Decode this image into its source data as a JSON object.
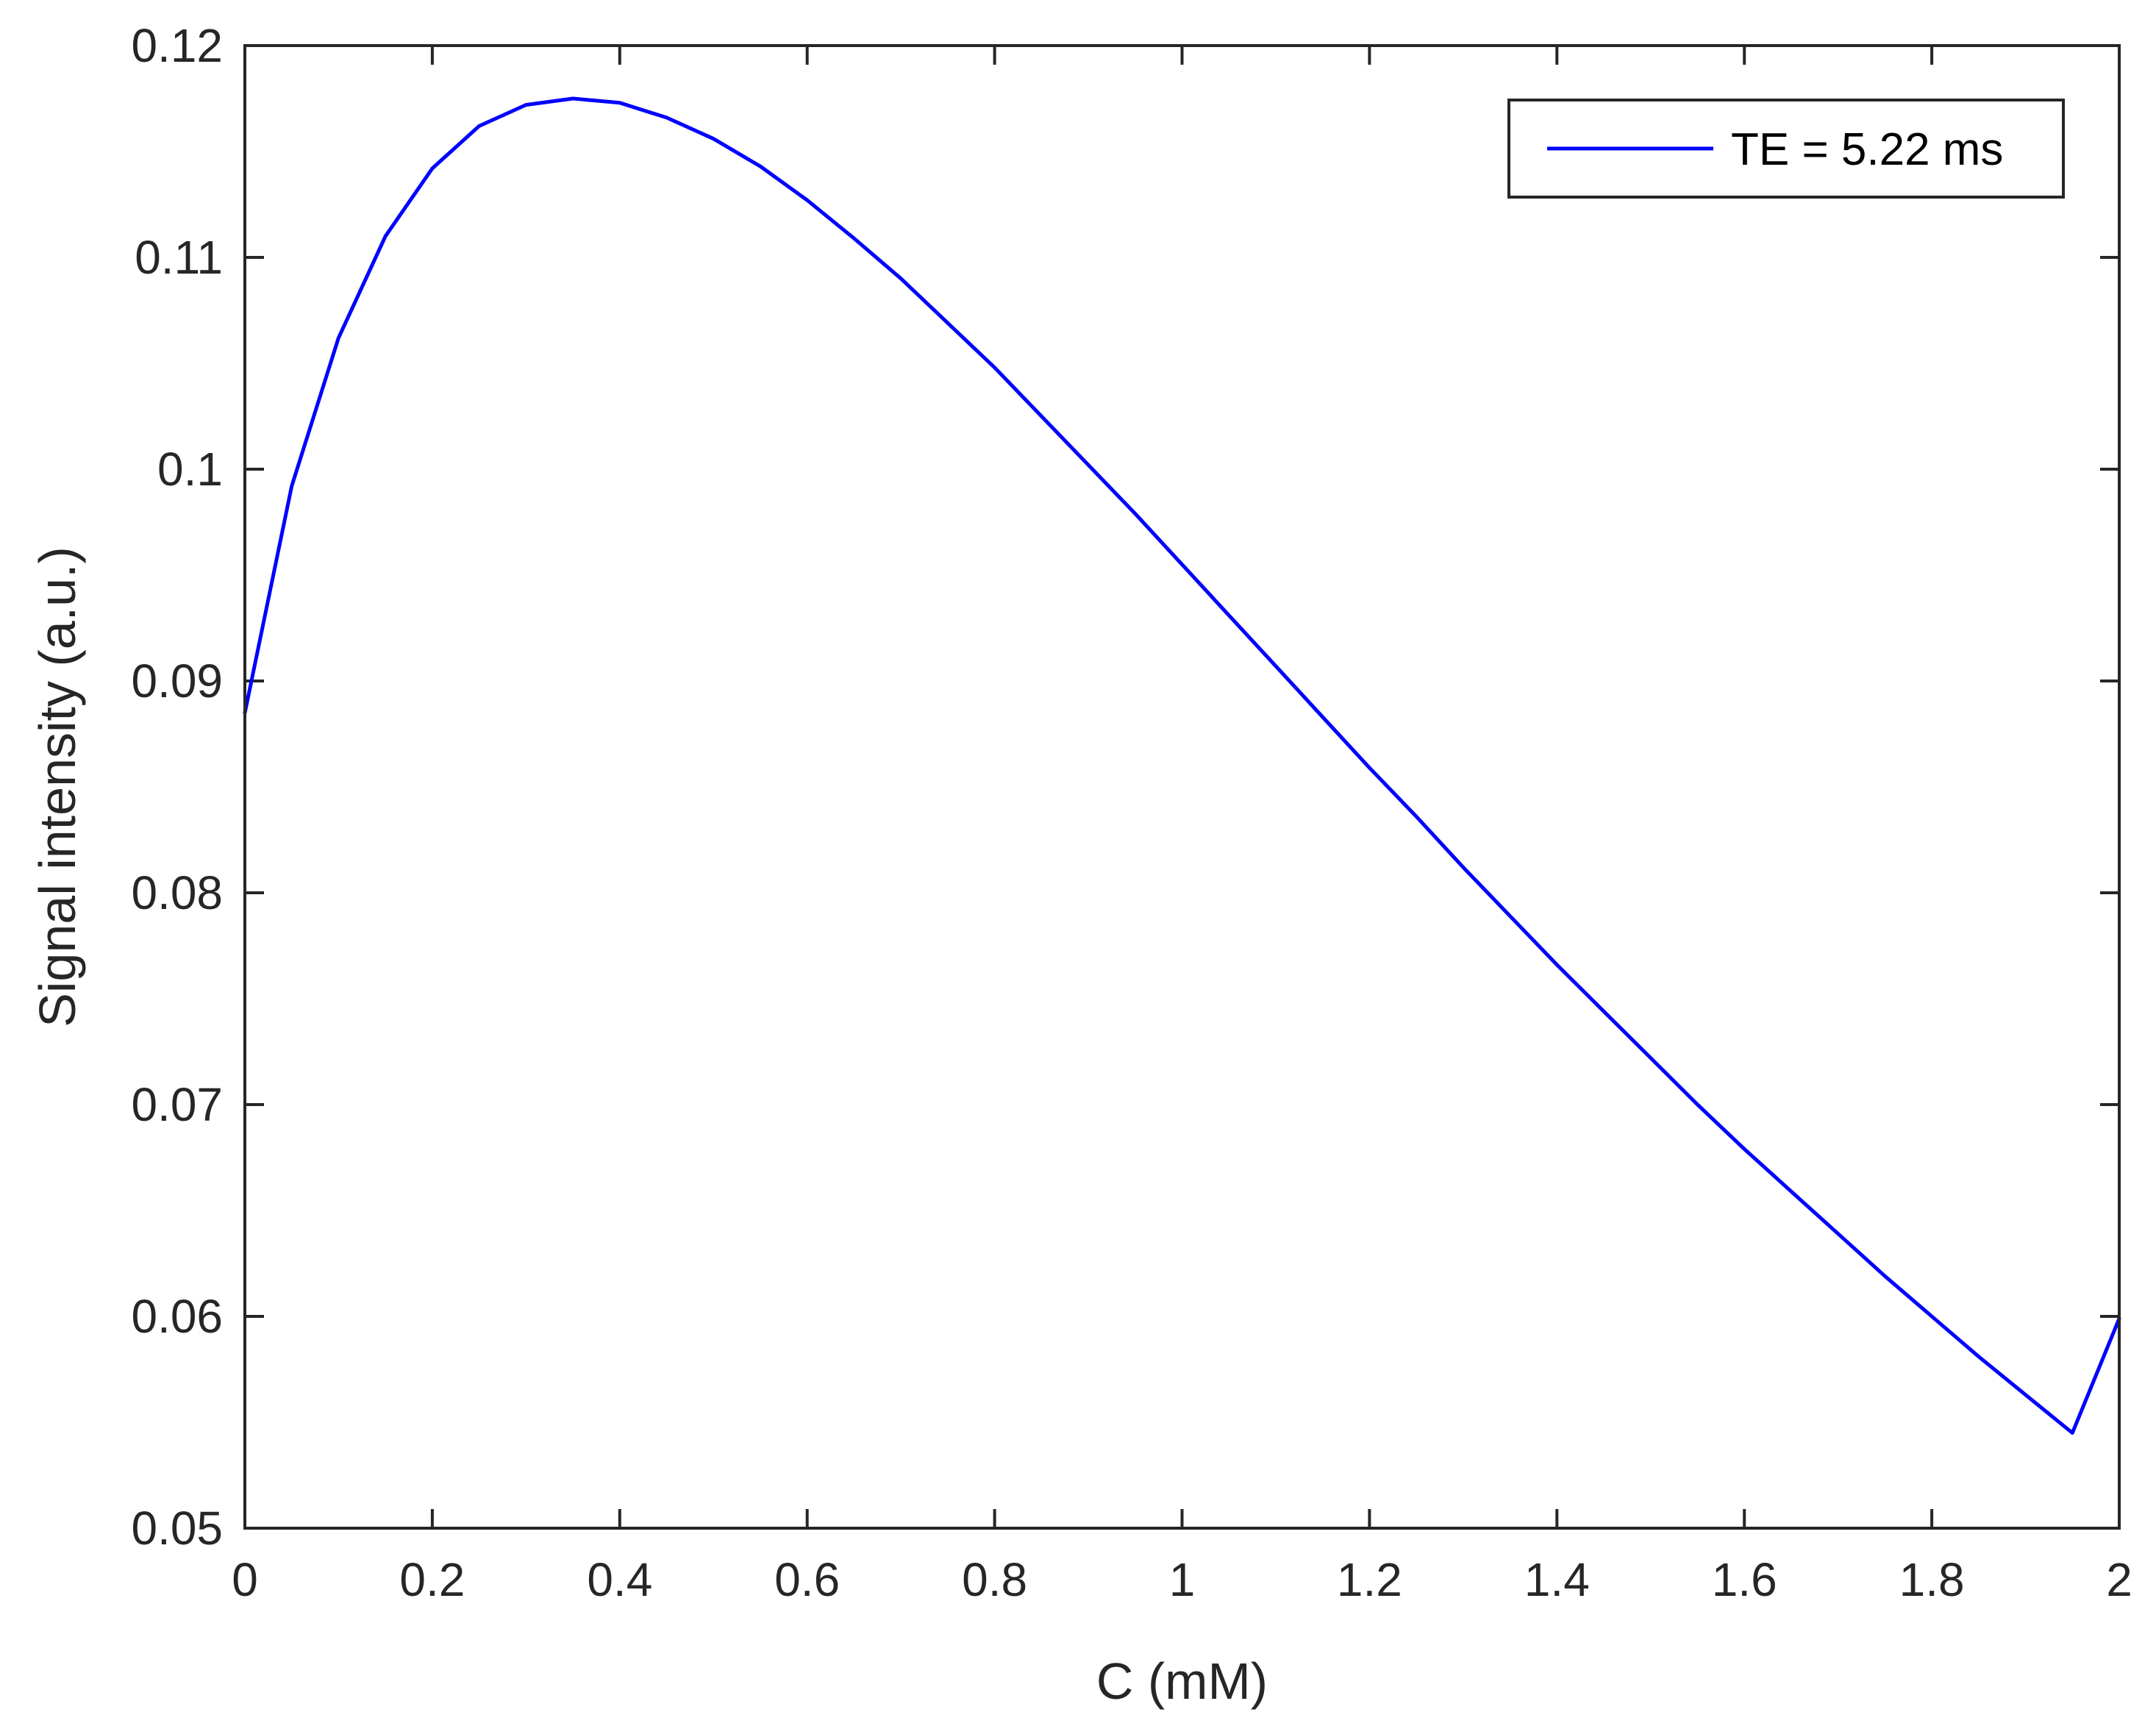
{
  "chart_data": {
    "type": "line",
    "title": "",
    "xlabel": "C (mM)",
    "ylabel": "Signal intensity (a.u.)",
    "xlim": [
      0,
      2
    ],
    "ylim": [
      0.05,
      0.12
    ],
    "xticks": [
      "0",
      "0.2",
      "0.4",
      "0.6",
      "0.8",
      "1",
      "1.2",
      "1.4",
      "1.6",
      "1.8",
      "2"
    ],
    "yticks": [
      "0.05",
      "0.06",
      "0.07",
      "0.08",
      "0.09",
      "0.1",
      "0.11",
      "0.12"
    ],
    "grid": false,
    "legend_position": "top-right",
    "series": [
      {
        "name": "TE = 5.22 ms",
        "color": "#0000ff",
        "x": [
          0,
          0.05,
          0.1,
          0.15,
          0.2,
          0.25,
          0.3,
          0.35,
          0.4,
          0.45,
          0.5,
          0.55,
          0.6,
          0.65,
          0.7,
          0.75,
          0.8,
          0.85,
          0.9,
          0.95,
          1.0,
          1.05,
          1.1,
          1.15,
          1.2,
          1.25,
          1.3,
          1.35,
          1.4,
          1.45,
          1.5,
          1.55,
          1.6,
          1.65,
          1.7,
          1.75,
          1.8,
          1.85,
          1.9,
          1.95,
          2.0
        ],
        "y": [
          0.0885,
          0.0992,
          0.1062,
          0.111,
          0.1142,
          0.1162,
          0.1172,
          0.1175,
          0.1173,
          0.1166,
          0.1156,
          0.1143,
          0.1127,
          0.1109,
          0.109,
          0.1069,
          0.1048,
          0.1025,
          0.1002,
          0.0979,
          0.0955,
          0.0931,
          0.0907,
          0.0883,
          0.0859,
          0.0836,
          0.0812,
          0.0789,
          0.0766,
          0.0744,
          0.0722,
          0.07,
          0.0679,
          0.0659,
          0.0639,
          0.0619,
          0.06,
          0.0581,
          0.0563,
          0.0545,
          0.0599
        ]
      }
    ]
  }
}
